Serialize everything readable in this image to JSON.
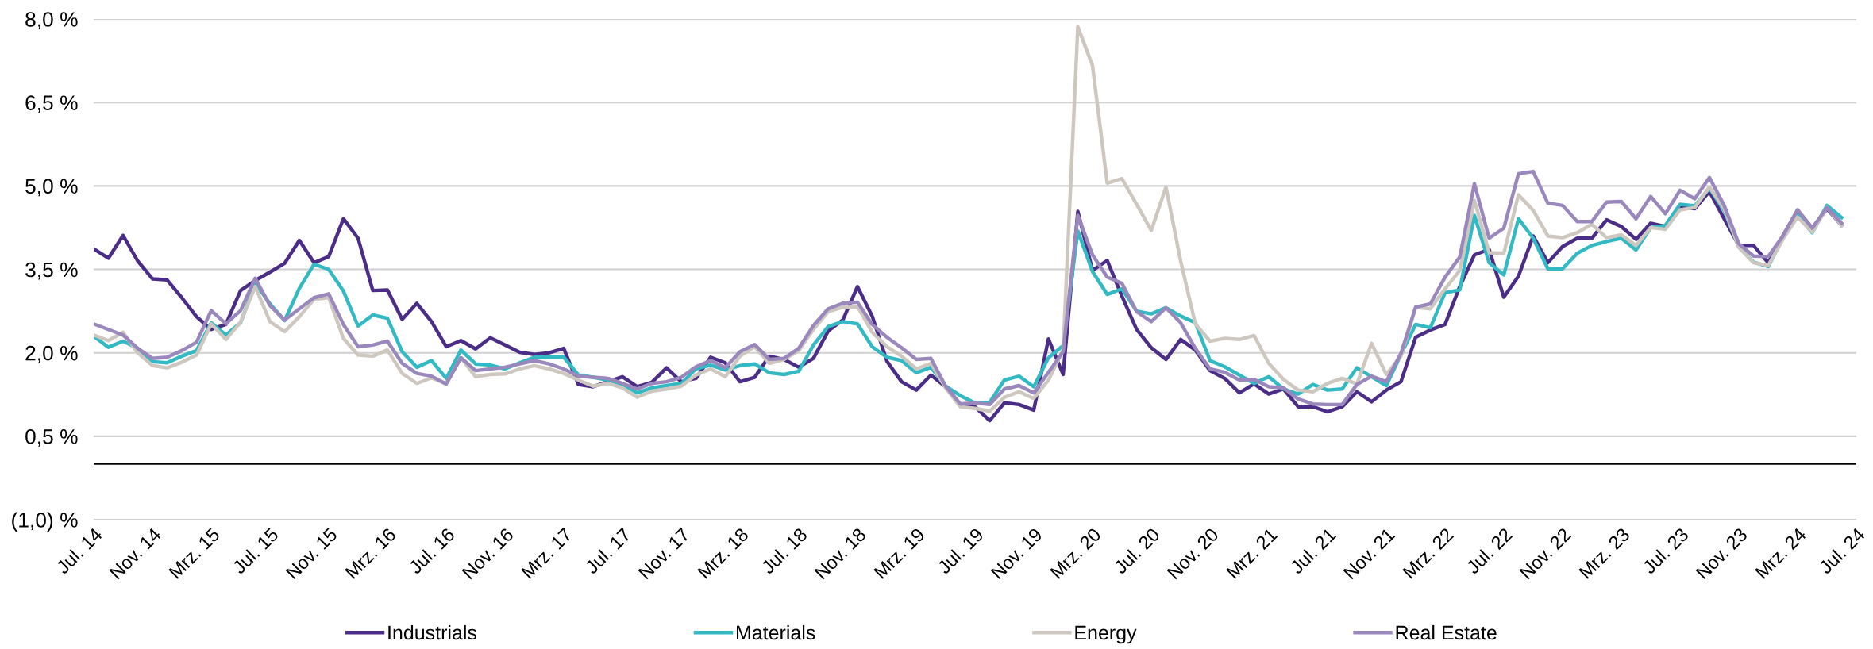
{
  "chart_data": {
    "type": "line",
    "categories": [
      "Jul. 14",
      null,
      null,
      null,
      "Nov. 14",
      null,
      null,
      null,
      "Mrz. 15",
      null,
      null,
      null,
      "Jul. 15",
      null,
      null,
      null,
      "Nov. 15",
      null,
      null,
      null,
      "Mrz. 16",
      null,
      null,
      null,
      "Jul. 16",
      null,
      null,
      null,
      "Nov. 16",
      null,
      null,
      null,
      "Mrz. 17",
      null,
      null,
      null,
      "Jul. 17",
      null,
      null,
      null,
      "Nov. 17",
      null,
      null,
      null,
      "Mrz. 18",
      null,
      null,
      null,
      "Jul. 18",
      null,
      null,
      null,
      "Nov. 18",
      null,
      null,
      null,
      "Mrz. 19",
      null,
      null,
      null,
      "Jul. 19",
      null,
      null,
      null,
      "Nov. 19",
      null,
      null,
      null,
      "Mrz. 20",
      null,
      null,
      null,
      "Jul. 20",
      null,
      null,
      null,
      "Nov. 20",
      null,
      null,
      null,
      "Mrz. 21",
      null,
      null,
      null,
      "Jul. 21",
      null,
      null,
      null,
      "Nov. 21",
      null,
      null,
      null,
      "Mrz. 22",
      null,
      null,
      null,
      "Jul. 22",
      null,
      null,
      null,
      "Nov. 22",
      null,
      null,
      null,
      "Mrz. 23",
      null,
      null,
      null,
      "Jul. 23",
      null,
      null,
      null,
      "Nov. 23",
      null,
      null,
      null,
      "Mrz. 24",
      null,
      null,
      null,
      "Jul. 24"
    ],
    "series": [
      {
        "name": "Industrials",
        "color": "#4b2c86",
        "values": [
          3.87,
          3.7,
          4.11,
          3.65,
          3.33,
          3.31,
          2.99,
          2.65,
          2.42,
          2.51,
          3.12,
          3.3,
          3.45,
          3.61,
          4.02,
          3.62,
          3.73,
          4.41,
          4.06,
          3.12,
          3.13,
          2.6,
          2.89,
          2.56,
          2.11,
          2.22,
          2.07,
          2.27,
          2.14,
          2.01,
          1.97,
          2.0,
          2.08,
          1.43,
          1.39,
          1.48,
          1.57,
          1.39,
          1.47,
          1.73,
          1.48,
          1.54,
          1.92,
          1.82,
          1.48,
          1.56,
          1.94,
          1.88,
          1.74,
          1.9,
          2.39,
          2.59,
          3.19,
          2.66,
          1.85,
          1.48,
          1.33,
          1.6,
          1.39,
          1.06,
          1.03,
          0.78,
          1.1,
          1.07,
          0.97,
          2.25,
          1.61,
          4.54,
          3.48,
          3.66,
          3.02,
          2.42,
          2.09,
          1.88,
          2.24,
          2.05,
          1.68,
          1.54,
          1.28,
          1.44,
          1.26,
          1.35,
          1.03,
          1.03,
          0.94,
          1.03,
          1.3,
          1.12,
          1.33,
          1.48,
          2.28,
          2.41,
          2.51,
          3.19,
          3.76,
          3.86,
          3.0,
          3.38,
          4.1,
          3.62,
          3.91,
          4.06,
          4.06,
          4.39,
          4.27,
          4.04,
          4.33,
          4.27,
          4.63,
          4.59,
          4.9,
          4.41,
          3.93,
          3.93,
          3.62,
          4.1,
          4.56,
          4.24,
          4.59,
          4.29,
          null
        ]
      },
      {
        "name": "Materials",
        "color": "#33b9c4",
        "values": [
          2.3,
          2.1,
          2.21,
          2.08,
          1.84,
          1.82,
          1.94,
          2.04,
          2.54,
          2.32,
          2.54,
          3.25,
          2.88,
          2.58,
          3.16,
          3.59,
          3.5,
          3.11,
          2.48,
          2.68,
          2.62,
          2.02,
          1.74,
          1.86,
          1.54,
          2.05,
          1.8,
          1.78,
          1.71,
          1.82,
          1.92,
          1.92,
          1.92,
          1.6,
          1.56,
          1.51,
          1.43,
          1.28,
          1.37,
          1.41,
          1.45,
          1.71,
          1.78,
          1.69,
          1.77,
          1.8,
          1.64,
          1.61,
          1.67,
          2.14,
          2.47,
          2.56,
          2.52,
          2.11,
          1.92,
          1.86,
          1.64,
          1.74,
          1.4,
          1.23,
          1.1,
          1.11,
          1.51,
          1.58,
          1.39,
          1.91,
          2.13,
          4.19,
          3.46,
          3.05,
          3.15,
          2.75,
          2.7,
          2.81,
          2.66,
          2.54,
          1.86,
          1.75,
          1.6,
          1.45,
          1.57,
          1.35,
          1.26,
          1.43,
          1.33,
          1.35,
          1.73,
          1.57,
          1.41,
          1.97,
          2.51,
          2.45,
          3.08,
          3.13,
          4.47,
          3.62,
          3.4,
          4.41,
          4.06,
          3.51,
          3.51,
          3.79,
          3.93,
          4.0,
          4.06,
          3.85,
          4.25,
          4.29,
          4.67,
          4.64,
          4.96,
          4.56,
          3.9,
          3.63,
          3.55,
          4.06,
          4.47,
          4.16,
          4.65,
          4.43,
          null
        ]
      },
      {
        "name": "Energy",
        "color": "#cdc7bf",
        "values": [
          2.32,
          2.22,
          2.37,
          2.0,
          1.77,
          1.73,
          1.83,
          1.96,
          2.52,
          2.24,
          2.55,
          3.19,
          2.56,
          2.38,
          2.65,
          2.96,
          2.99,
          2.26,
          1.96,
          1.94,
          2.05,
          1.63,
          1.45,
          1.55,
          1.44,
          1.91,
          1.57,
          1.61,
          1.62,
          1.71,
          1.77,
          1.71,
          1.63,
          1.51,
          1.4,
          1.45,
          1.37,
          1.2,
          1.31,
          1.35,
          1.4,
          1.6,
          1.71,
          1.57,
          1.94,
          2.11,
          1.81,
          1.88,
          2.04,
          2.42,
          2.74,
          2.82,
          2.83,
          2.37,
          2.11,
          1.94,
          1.71,
          1.81,
          1.37,
          1.03,
          1.0,
          0.95,
          1.2,
          1.3,
          1.18,
          1.51,
          2.05,
          7.86,
          7.16,
          5.05,
          5.13,
          4.67,
          4.2,
          4.98,
          3.65,
          2.52,
          2.21,
          2.26,
          2.24,
          2.31,
          1.81,
          1.52,
          1.33,
          1.3,
          1.45,
          1.54,
          1.44,
          2.17,
          1.61,
          1.94,
          2.82,
          2.79,
          3.15,
          3.48,
          4.74,
          3.8,
          3.79,
          4.84,
          4.56,
          4.1,
          4.07,
          4.16,
          4.31,
          4.07,
          4.12,
          3.93,
          4.25,
          4.22,
          4.57,
          4.61,
          4.98,
          4.59,
          3.9,
          3.62,
          3.57,
          4.04,
          4.44,
          4.17,
          4.61,
          4.29,
          null
        ]
      },
      {
        "name": "Real Estate",
        "color": "#9a88bd",
        "values": [
          2.52,
          2.42,
          2.32,
          2.08,
          1.9,
          1.92,
          2.04,
          2.19,
          2.76,
          2.52,
          2.76,
          3.34,
          2.85,
          2.59,
          2.79,
          2.99,
          3.06,
          2.51,
          2.11,
          2.14,
          2.21,
          1.81,
          1.63,
          1.58,
          1.44,
          1.91,
          1.68,
          1.71,
          1.74,
          1.8,
          1.86,
          1.8,
          1.71,
          1.58,
          1.56,
          1.54,
          1.45,
          1.35,
          1.45,
          1.48,
          1.56,
          1.75,
          1.86,
          1.73,
          2.02,
          2.15,
          1.88,
          1.9,
          2.08,
          2.49,
          2.79,
          2.89,
          2.91,
          2.51,
          2.28,
          2.09,
          1.88,
          1.9,
          1.4,
          1.08,
          1.1,
          1.07,
          1.35,
          1.41,
          1.28,
          1.65,
          2.02,
          4.47,
          3.76,
          3.36,
          3.25,
          2.74,
          2.56,
          2.81,
          2.54,
          2.08,
          1.71,
          1.65,
          1.51,
          1.52,
          1.39,
          1.37,
          1.17,
          1.08,
          1.07,
          1.07,
          1.43,
          1.58,
          1.48,
          1.99,
          2.82,
          2.88,
          3.36,
          3.72,
          5.04,
          4.06,
          4.24,
          5.22,
          5.26,
          4.69,
          4.65,
          4.36,
          4.36,
          4.71,
          4.72,
          4.41,
          4.81,
          4.5,
          4.92,
          4.77,
          5.15,
          4.65,
          3.96,
          3.74,
          3.73,
          4.1,
          4.57,
          4.24,
          4.61,
          4.33,
          null
        ]
      }
    ],
    "ylim": [
      -1.0,
      8.0
    ],
    "yticks": [
      {
        "value": -1.0,
        "label": "(1,0) %"
      },
      {
        "value": 0.5,
        "label": "0,5 %"
      },
      {
        "value": 2.0,
        "label": "2,0 %"
      },
      {
        "value": 3.5,
        "label": "3,5 %"
      },
      {
        "value": 5.0,
        "label": "5,0 %"
      },
      {
        "value": 6.5,
        "label": "6,5 %"
      },
      {
        "value": 8.0,
        "label": "8,0 %"
      }
    ],
    "ref_lines": [
      {
        "axis": "y",
        "value": 0,
        "label": null,
        "color": "#000000"
      }
    ],
    "grid": "y",
    "legend": "bottom",
    "marker": "none",
    "line_style": "solid"
  }
}
